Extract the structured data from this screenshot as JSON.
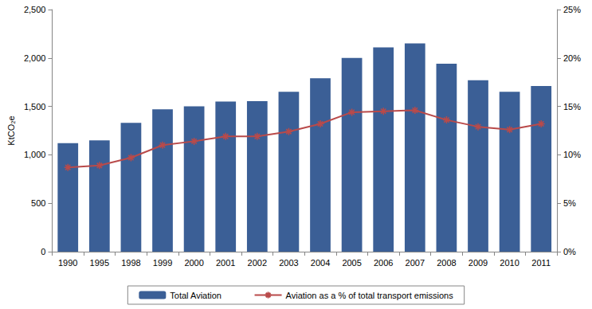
{
  "chart_data": {
    "type": "bar",
    "y_label": "KtCO₂e",
    "categories": [
      "1990",
      "1995",
      "1998",
      "1999",
      "2000",
      "2001",
      "2002",
      "2003",
      "2004",
      "2005",
      "2006",
      "2007",
      "2008",
      "2009",
      "2010",
      "2011"
    ],
    "series": [
      {
        "name": "Total Aviation",
        "type": "bar",
        "color": "#3b5f96",
        "values": [
          1120,
          1150,
          1330,
          1470,
          1500,
          1550,
          1555,
          1650,
          1790,
          2000,
          2110,
          2150,
          1940,
          1770,
          1650,
          1710
        ]
      },
      {
        "name": "Aviation as a % of total transport emissions",
        "type": "line",
        "axis": "y2",
        "color": "#b94a4a",
        "marker": "asterisk",
        "line_style": "solid",
        "values": [
          8.7,
          8.9,
          9.7,
          11.0,
          11.4,
          11.9,
          11.9,
          12.4,
          13.2,
          14.4,
          14.5,
          14.6,
          13.6,
          12.9,
          12.6,
          13.2
        ]
      }
    ],
    "ylim": [
      0,
      2500
    ],
    "yticks": [
      0,
      500,
      {
        "value": 1000,
        "label": "1,000"
      },
      {
        "value": 1500,
        "label": "1,500"
      },
      {
        "value": 2000,
        "label": "2,000"
      },
      {
        "value": 2500,
        "label": "2,500"
      }
    ],
    "y2lim": [
      0,
      25
    ],
    "y2ticks": [
      {
        "value": 0,
        "label": "0%"
      },
      {
        "value": 5,
        "label": "5%"
      },
      {
        "value": 10,
        "label": "10%"
      },
      {
        "value": 15,
        "label": "15%"
      },
      {
        "value": 20,
        "label": "20%"
      },
      {
        "value": 25,
        "label": "25%"
      }
    ],
    "grid": false,
    "legend": "bottom"
  }
}
